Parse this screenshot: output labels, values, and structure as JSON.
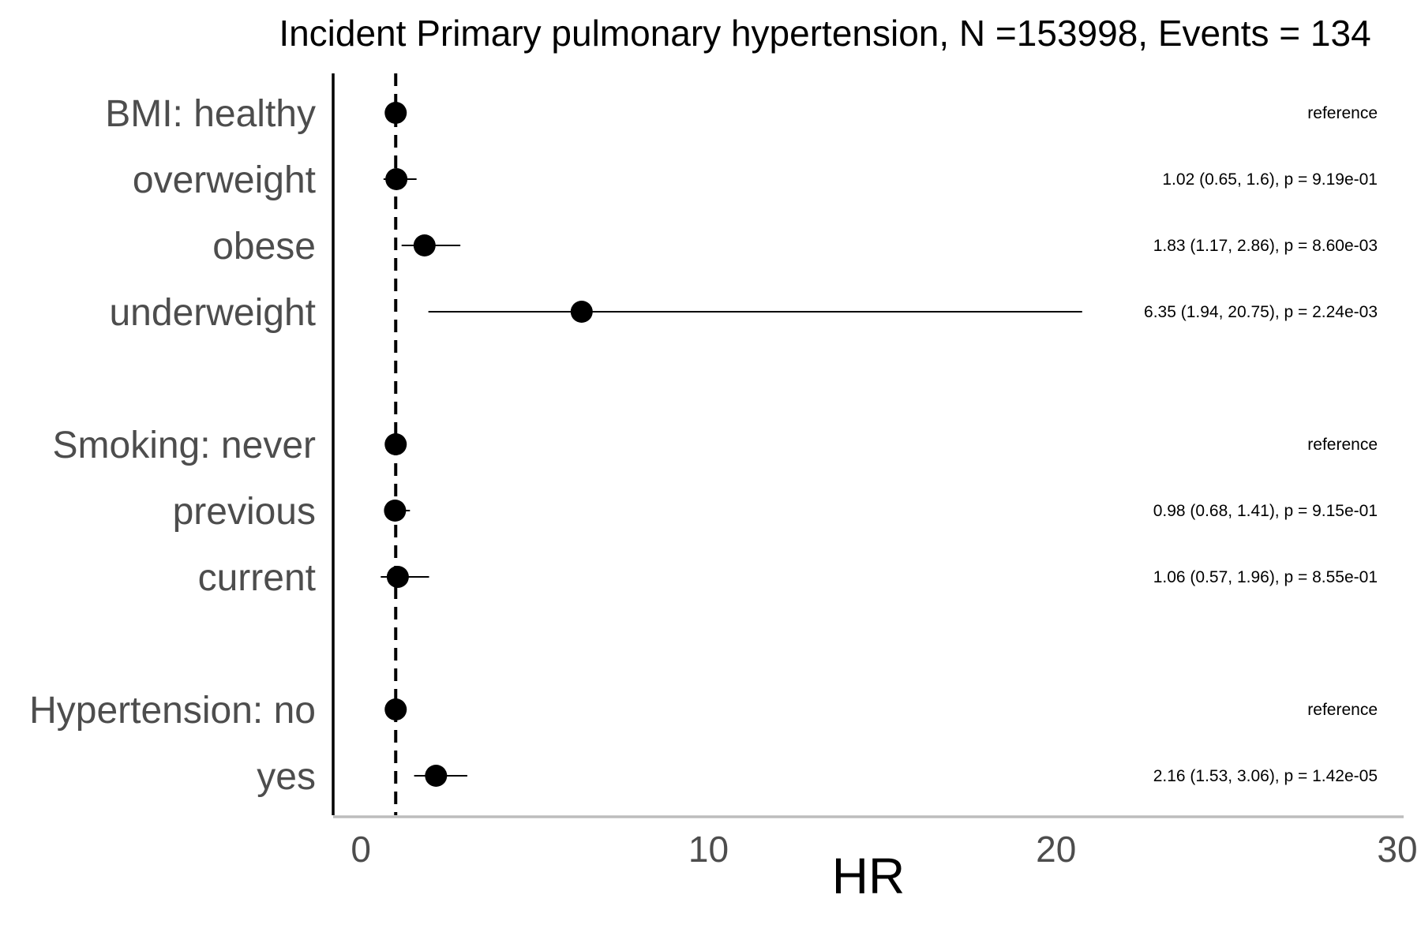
{
  "chart_data": {
    "type": "forest",
    "title": "Incident Primary pulmonary hypertension, N =153998, Events = 134",
    "xlabel": "HR",
    "xlim": [
      -0.8,
      30
    ],
    "xticks": [
      "0",
      "10",
      "20",
      "30"
    ],
    "xtick_values": [
      0,
      10,
      20,
      30
    ],
    "reference_line": 1,
    "grid": false,
    "rows": [
      {
        "label": "BMI: healthy",
        "hr": 1,
        "lower": null,
        "upper": null,
        "annotation": "reference"
      },
      {
        "label": "overweight",
        "hr": 1.02,
        "lower": 0.65,
        "upper": 1.6,
        "annotation": "1.02 (0.65, 1.6), p = 9.19e-01"
      },
      {
        "label": "obese",
        "hr": 1.83,
        "lower": 1.17,
        "upper": 2.86,
        "annotation": "1.83 (1.17, 2.86), p = 8.60e-03"
      },
      {
        "label": "underweight",
        "hr": 6.35,
        "lower": 1.94,
        "upper": 20.75,
        "annotation": "6.35 (1.94, 20.75), p = 2.24e-03"
      },
      {
        "label": "Smoking: never",
        "hr": 1,
        "lower": null,
        "upper": null,
        "annotation": "reference"
      },
      {
        "label": "previous",
        "hr": 0.98,
        "lower": 0.68,
        "upper": 1.41,
        "annotation": "0.98 (0.68, 1.41), p = 9.15e-01"
      },
      {
        "label": "current",
        "hr": 1.06,
        "lower": 0.57,
        "upper": 1.96,
        "annotation": "1.06 (0.57, 1.96), p = 8.55e-01"
      },
      {
        "label": "Hypertension: no",
        "hr": 1,
        "lower": null,
        "upper": null,
        "annotation": "reference"
      },
      {
        "label": "yes",
        "hr": 2.16,
        "lower": 1.53,
        "upper": 3.06,
        "annotation": "2.16 (1.53, 3.06), p = 1.42e-05"
      }
    ]
  }
}
